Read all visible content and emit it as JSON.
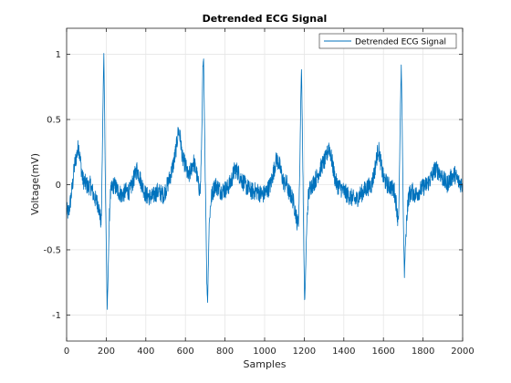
{
  "chart_data": {
    "type": "line",
    "title": "Detrended ECG Signal",
    "xlabel": "Samples",
    "ylabel": "Voltage(mV)",
    "xlim": [
      0,
      2000
    ],
    "ylim": [
      -1.2,
      1.2
    ],
    "grid": true,
    "legend_position": "top-right",
    "x_ticks": [
      "0",
      "200",
      "400",
      "600",
      "800",
      "1000",
      "1200",
      "1400",
      "1600",
      "1800",
      "2000"
    ],
    "y_ticks": [
      "1",
      "0.5",
      "0",
      "-0.5",
      "-1"
    ],
    "series": [
      {
        "name": "Detrended ECG Signal",
        "color": "#0072bd",
        "x": [
          0,
          10,
          20,
          30,
          40,
          50,
          60,
          65,
          70,
          80,
          90,
          100,
          110,
          120,
          140,
          160,
          170,
          175,
          180,
          185,
          188,
          192,
          195,
          200,
          205,
          208,
          212,
          216,
          220,
          225,
          230,
          240,
          260,
          280,
          300,
          320,
          340,
          355,
          365,
          380,
          400,
          430,
          460,
          490,
          510,
          530,
          545,
          555,
          565,
          575,
          585,
          600,
          615,
          625,
          640,
          655,
          665,
          675,
          680,
          684,
          688,
          692,
          696,
          700,
          704,
          708,
          712,
          716,
          720,
          730,
          750,
          780,
          810,
          830,
          850,
          865,
          880,
          900,
          930,
          960,
          990,
          1010,
          1030,
          1045,
          1060,
          1075,
          1090,
          1100,
          1110,
          1120,
          1140,
          1155,
          1165,
          1172,
          1178,
          1182,
          1186,
          1190,
          1194,
          1198,
          1202,
          1206,
          1210,
          1215,
          1220,
          1230,
          1250,
          1270,
          1290,
          1310,
          1325,
          1340,
          1355,
          1365,
          1380,
          1400,
          1420,
          1440,
          1460,
          1480,
          1500,
          1520,
          1540,
          1555,
          1565,
          1575,
          1585,
          1600,
          1620,
          1640,
          1655,
          1665,
          1672,
          1678,
          1682,
          1686,
          1690,
          1694,
          1698,
          1702,
          1706,
          1710,
          1716,
          1722,
          1730,
          1745,
          1760,
          1780,
          1800,
          1820,
          1840,
          1860,
          1880,
          1900,
          1920,
          1940,
          1960,
          1980,
          2000
        ],
        "y": [
          -0.2,
          -0.22,
          -0.12,
          0.0,
          0.15,
          0.22,
          0.3,
          0.25,
          0.18,
          0.05,
          0.02,
          0.0,
          -0.02,
          0.0,
          -0.1,
          -0.15,
          -0.25,
          -0.3,
          0.2,
          0.75,
          1.0,
          0.55,
          0.1,
          -0.45,
          -0.95,
          -0.8,
          -0.5,
          -0.25,
          -0.1,
          -0.05,
          -0.02,
          0.0,
          -0.05,
          -0.08,
          -0.05,
          -0.05,
          0.05,
          0.12,
          0.08,
          0.0,
          -0.08,
          -0.1,
          -0.05,
          -0.08,
          0.0,
          0.1,
          0.2,
          0.3,
          0.42,
          0.35,
          0.2,
          0.15,
          0.05,
          0.1,
          0.18,
          0.1,
          0.0,
          -0.05,
          0.2,
          0.5,
          0.9,
          0.95,
          0.5,
          0.1,
          -0.3,
          -0.75,
          -0.9,
          -0.6,
          -0.3,
          -0.1,
          0.0,
          -0.05,
          -0.03,
          0.02,
          0.12,
          0.1,
          0.05,
          0.0,
          -0.05,
          -0.05,
          -0.08,
          -0.05,
          0.0,
          0.1,
          0.2,
          0.15,
          0.05,
          0.0,
          0.02,
          -0.05,
          -0.1,
          -0.2,
          -0.3,
          -0.25,
          0.15,
          0.6,
          0.9,
          0.5,
          0.0,
          -0.5,
          -0.9,
          -0.75,
          -0.45,
          -0.25,
          -0.1,
          -0.02,
          0.02,
          0.08,
          0.15,
          0.2,
          0.3,
          0.18,
          0.05,
          0.0,
          -0.02,
          -0.05,
          -0.08,
          -0.1,
          -0.12,
          -0.08,
          -0.05,
          -0.02,
          0.0,
          0.1,
          0.2,
          0.28,
          0.18,
          0.05,
          0.0,
          -0.02,
          -0.05,
          -0.15,
          -0.25,
          -0.2,
          0.2,
          0.6,
          0.9,
          0.55,
          0.05,
          -0.4,
          -0.7,
          -0.5,
          -0.3,
          -0.15,
          -0.08,
          -0.05,
          -0.08,
          -0.05,
          -0.02,
          0.0,
          0.05,
          0.12,
          0.1,
          0.05,
          0.0,
          0.05,
          0.08,
          0.02,
          0.0
        ]
      }
    ]
  }
}
